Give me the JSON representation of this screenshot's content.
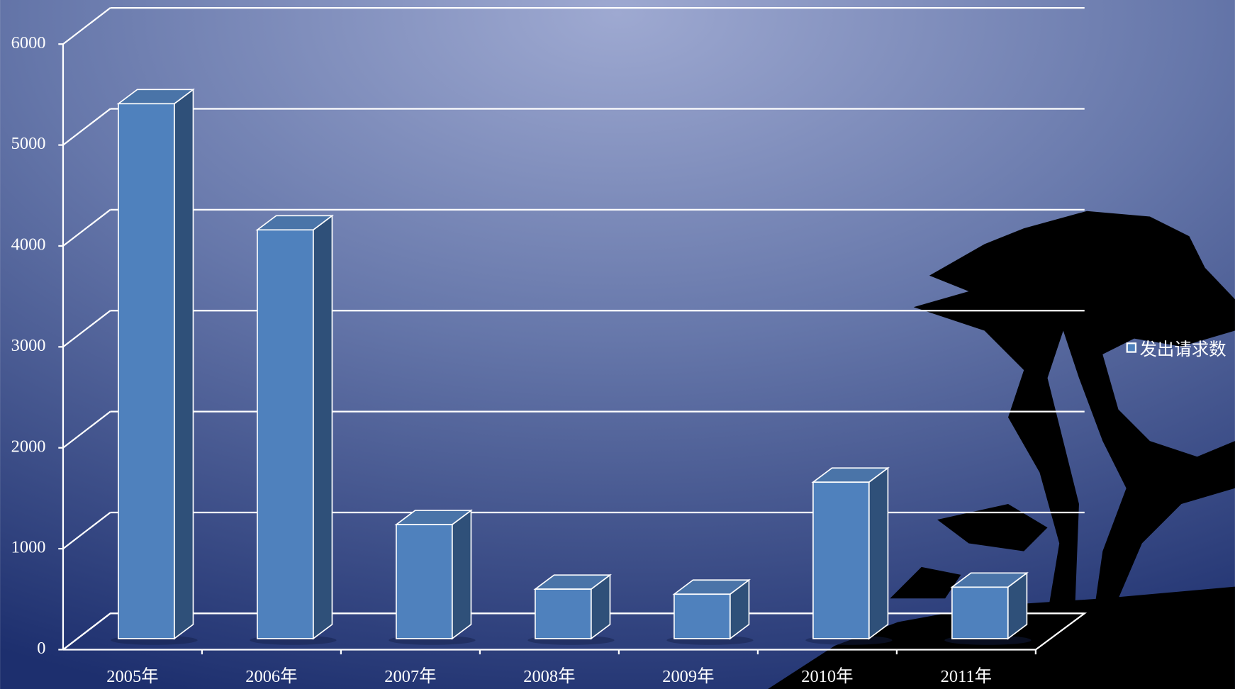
{
  "chart_data": {
    "type": "bar3d",
    "categories": [
      "2005年",
      "2006年",
      "2007年",
      "2008年",
      "2009年",
      "2010年",
      "2011年"
    ],
    "series": [
      {
        "name": "发出请求数",
        "color": "#4f81bd",
        "values": [
          5300,
          4050,
          1130,
          490,
          440,
          1550,
          510
        ]
      }
    ],
    "ylim": [
      0,
      6000
    ],
    "yticks": [
      0,
      1000,
      2000,
      3000,
      4000,
      5000,
      6000
    ],
    "grid": true,
    "legend": "right"
  }
}
